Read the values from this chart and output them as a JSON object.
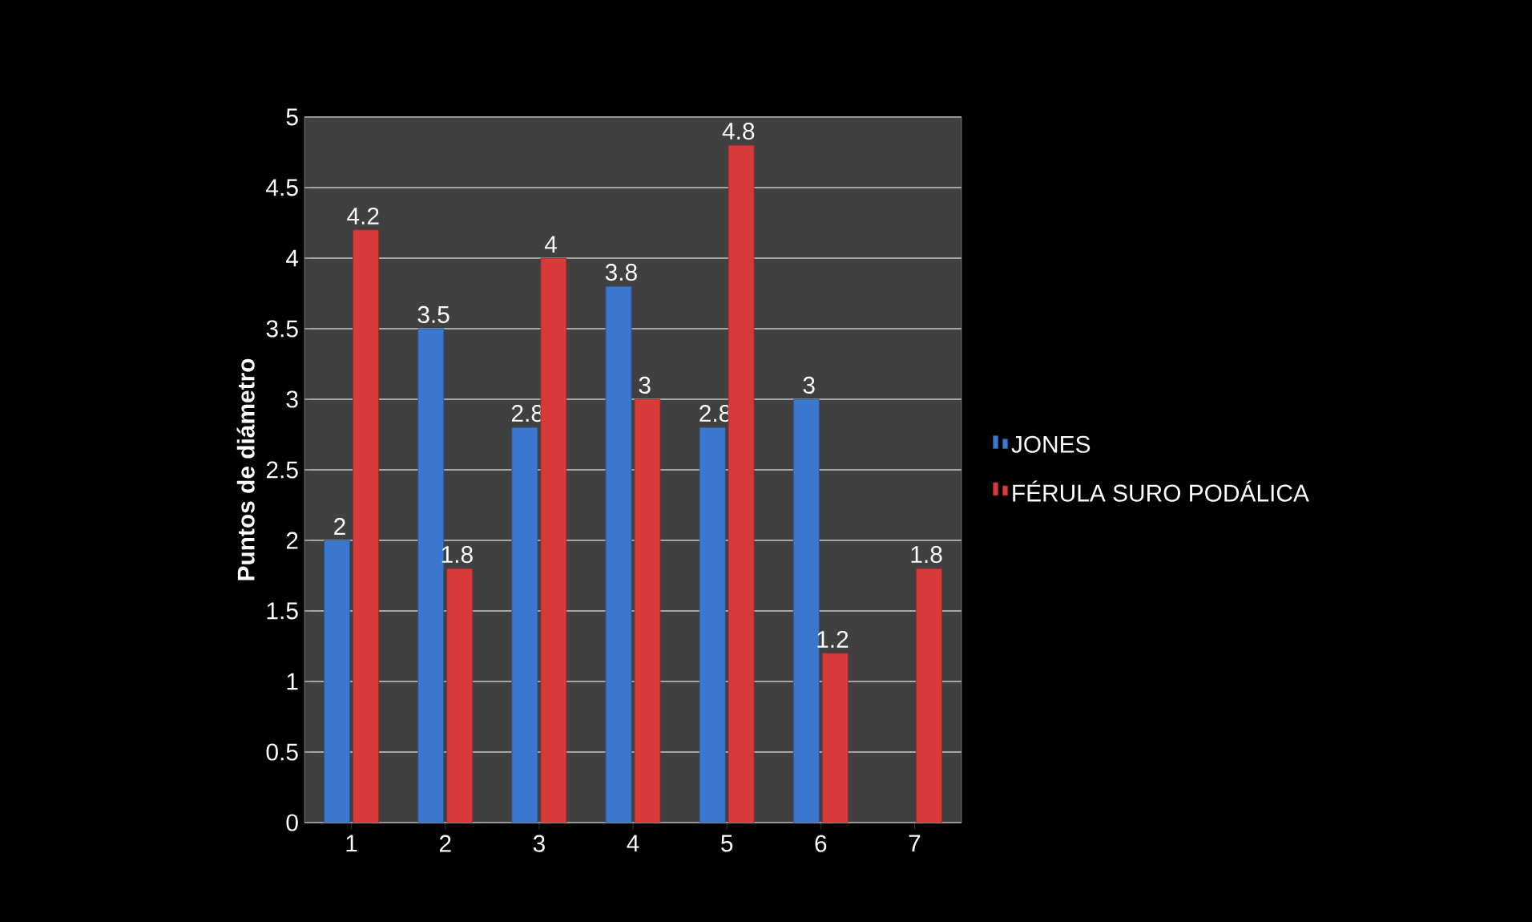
{
  "chart_data": {
    "type": "bar",
    "ylabel": "Puntos de diámetro",
    "categories": [
      "1",
      "2",
      "3",
      "4",
      "5",
      "6",
      "7"
    ],
    "series": [
      {
        "name": "JONES",
        "color": "#3a78d0",
        "values": [
          2,
          3.5,
          2.8,
          3.8,
          2.8,
          3,
          null
        ]
      },
      {
        "name": "FÉRULA SURO PODÁLICA",
        "color": "#d83a3a",
        "values": [
          4.2,
          1.8,
          4,
          3,
          4.8,
          1.2,
          1.8
        ]
      }
    ],
    "ylim": [
      0,
      5
    ],
    "yticks": [
      0,
      0.5,
      1,
      1.5,
      2,
      2.5,
      3,
      3.5,
      4,
      4.5,
      5
    ],
    "grid": "y",
    "legend": "right",
    "data_labels": true
  }
}
